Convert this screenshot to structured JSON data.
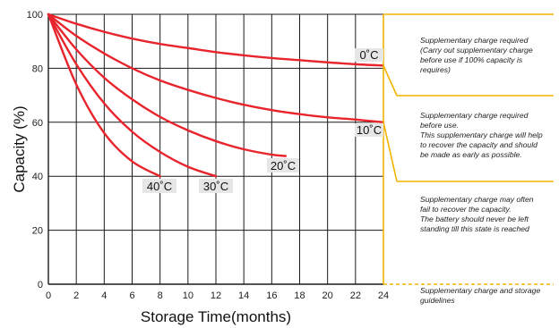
{
  "chart_data": {
    "type": "line",
    "xlabel": "Storage  Time(months)",
    "ylabel": "Capacity (%)",
    "xlim": [
      0,
      24
    ],
    "ylim": [
      0,
      100
    ],
    "xticks": [
      "0",
      "2",
      "4",
      "6",
      "8",
      "10",
      "12",
      "14",
      "16",
      "18",
      "20",
      "22",
      "24"
    ],
    "yticks": [
      "0",
      "20",
      "40",
      "60",
      "80",
      "100"
    ],
    "grid": true,
    "series": [
      {
        "name": "0˚C",
        "color": "#e8242c",
        "x": [
          0,
          2,
          4,
          6,
          8,
          10,
          12,
          14,
          16,
          18,
          20,
          22,
          24
        ],
        "y": [
          100,
          96.5,
          93.5,
          91,
          89,
          87.5,
          86,
          84.8,
          83.8,
          83,
          82.2,
          81.5,
          81
        ]
      },
      {
        "name": "10˚C",
        "color": "#e8242c",
        "x": [
          0,
          2,
          4,
          6,
          8,
          10,
          12,
          14,
          16,
          18,
          20,
          22,
          24
        ],
        "y": [
          100,
          92,
          85.5,
          80,
          75.5,
          72,
          69,
          66.5,
          64.5,
          63,
          61.8,
          61,
          60
        ]
      },
      {
        "name": "20˚C",
        "color": "#e8242c",
        "x": [
          0,
          2,
          4,
          6,
          8,
          10,
          12,
          14,
          16,
          17
        ],
        "y": [
          100,
          87,
          76.5,
          68.5,
          62,
          57,
          53,
          50,
          48,
          47.5
        ]
      },
      {
        "name": "30˚C",
        "color": "#e8242c",
        "x": [
          0,
          2,
          4,
          6,
          8,
          10,
          12
        ],
        "y": [
          100,
          81.5,
          67,
          56.5,
          49,
          43.5,
          40
        ]
      },
      {
        "name": "40˚C",
        "color": "#e8242c",
        "x": [
          0,
          2,
          4,
          6,
          8
        ],
        "y": [
          100,
          74,
          56,
          45.5,
          40
        ]
      }
    ]
  },
  "labels": {
    "t0": "0˚C",
    "t10": "10˚C",
    "t20": "20˚C",
    "t30": "30˚C",
    "t40": "40˚C"
  },
  "notes": {
    "n1": "Supplementary charge required\n(Carry out supplementary charge\nbefore use if 100% capacity is\nrequires)",
    "n2": "Supplementary charge required\nbefore use.\nThis supplementary charge will help\nto recover the capacity and should\nbe made  as early as possible.",
    "n3": "Supplementary charge may often\nfail to recover the capacity.\nThe battery should never be left\nstanding till this state is reached",
    "n4": "Supplementary charge and storage\nguidelines"
  },
  "colors": {
    "curve": "#e8242c",
    "bracket": "#f2b400",
    "label_bg": "#e6e6e6"
  }
}
